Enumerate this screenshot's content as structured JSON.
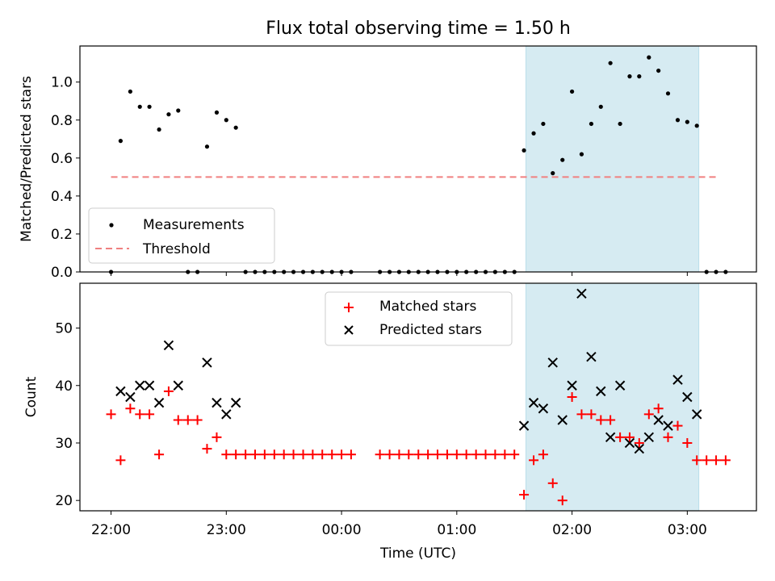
{
  "figure": {
    "title": "Flux total observing time = 1.50 h",
    "xlabel": "Time (UTC)",
    "x_tick_labels": [
      "22:00",
      "23:00",
      "00:00",
      "01:00",
      "02:00",
      "03:00"
    ],
    "x_tick_hours": [
      0,
      1,
      2,
      3,
      4,
      5
    ],
    "x_origin": "22:00 UTC",
    "x_range_hours": [
      -0.27,
      5.6
    ],
    "shaded_span_hours": [
      3.6,
      5.1
    ],
    "shaded_color": "#add8e6"
  },
  "chart_data": [
    {
      "type": "scatter",
      "ylabel": "Matched/Predicted stars",
      "ylim": [
        0,
        1.19
      ],
      "yticks": [
        0.0,
        0.2,
        0.4,
        0.6,
        0.8,
        1.0
      ],
      "ytick_labels": [
        "0.0",
        "0.2",
        "0.4",
        "0.6",
        "0.8",
        "1.0"
      ],
      "legend_position": "lower-left",
      "threshold": {
        "name": "Threshold",
        "value": 0.5,
        "x_range_hours": [
          0,
          5.25
        ],
        "color": "#f08080"
      },
      "series": [
        {
          "name": "Measurements",
          "color": "#000000",
          "marker": "dot",
          "points": [
            [
              0.0,
              0.0
            ],
            [
              0.083,
              0.69
            ],
            [
              0.167,
              0.95
            ],
            [
              0.25,
              0.87
            ],
            [
              0.333,
              0.87
            ],
            [
              0.417,
              0.75
            ],
            [
              0.5,
              0.83
            ],
            [
              0.583,
              0.85
            ],
            [
              0.667,
              0.0
            ],
            [
              0.75,
              0.0
            ],
            [
              0.833,
              0.66
            ],
            [
              0.917,
              0.84
            ],
            [
              1.0,
              0.8
            ],
            [
              1.083,
              0.76
            ],
            [
              1.167,
              0.0
            ],
            [
              1.25,
              0.0
            ],
            [
              1.333,
              0.0
            ],
            [
              1.417,
              0.0
            ],
            [
              1.5,
              0.0
            ],
            [
              1.583,
              0.0
            ],
            [
              1.667,
              0.0
            ],
            [
              1.75,
              0.0
            ],
            [
              1.833,
              0.0
            ],
            [
              1.917,
              0.0
            ],
            [
              2.0,
              0.0
            ],
            [
              2.083,
              0.0
            ],
            [
              2.333,
              0.0
            ],
            [
              2.417,
              0.0
            ],
            [
              2.5,
              0.0
            ],
            [
              2.583,
              0.0
            ],
            [
              2.667,
              0.0
            ],
            [
              2.75,
              0.0
            ],
            [
              2.833,
              0.0
            ],
            [
              2.917,
              0.0
            ],
            [
              3.0,
              0.0
            ],
            [
              3.083,
              0.0
            ],
            [
              3.167,
              0.0
            ],
            [
              3.25,
              0.0
            ],
            [
              3.333,
              0.0
            ],
            [
              3.417,
              0.0
            ],
            [
              3.5,
              0.0
            ],
            [
              3.583,
              0.64
            ],
            [
              3.667,
              0.73
            ],
            [
              3.75,
              0.78
            ],
            [
              3.833,
              0.52
            ],
            [
              3.917,
              0.59
            ],
            [
              4.0,
              0.95
            ],
            [
              4.083,
              0.62
            ],
            [
              4.167,
              0.78
            ],
            [
              4.25,
              0.87
            ],
            [
              4.333,
              1.1
            ],
            [
              4.417,
              0.78
            ],
            [
              4.5,
              1.03
            ],
            [
              4.583,
              1.03
            ],
            [
              4.667,
              1.13
            ],
            [
              4.75,
              1.06
            ],
            [
              4.833,
              0.94
            ],
            [
              4.917,
              0.8
            ],
            [
              5.0,
              0.79
            ],
            [
              5.083,
              0.77
            ],
            [
              5.167,
              0.0
            ],
            [
              5.25,
              0.0
            ],
            [
              5.333,
              0.0
            ]
          ]
        }
      ]
    },
    {
      "type": "scatter",
      "ylabel": "Count",
      "ylim": [
        18.2,
        57.8
      ],
      "yticks": [
        20,
        30,
        40,
        50
      ],
      "ytick_labels": [
        "20",
        "30",
        "40",
        "50"
      ],
      "legend_position": "upper-center",
      "series": [
        {
          "name": "Matched stars",
          "color": "#ff0000",
          "marker": "plus",
          "points": [
            [
              0.0,
              35
            ],
            [
              0.083,
              27
            ],
            [
              0.167,
              36
            ],
            [
              0.25,
              35
            ],
            [
              0.333,
              35
            ],
            [
              0.417,
              28
            ],
            [
              0.5,
              39
            ],
            [
              0.583,
              34
            ],
            [
              0.667,
              34
            ],
            [
              0.75,
              34
            ],
            [
              0.833,
              29
            ],
            [
              0.917,
              31
            ],
            [
              1.0,
              28
            ],
            [
              1.083,
              28
            ],
            [
              1.167,
              28
            ],
            [
              1.25,
              28
            ],
            [
              1.333,
              28
            ],
            [
              1.417,
              28
            ],
            [
              1.5,
              28
            ],
            [
              1.583,
              28
            ],
            [
              1.667,
              28
            ],
            [
              1.75,
              28
            ],
            [
              1.833,
              28
            ],
            [
              1.917,
              28
            ],
            [
              2.0,
              28
            ],
            [
              2.083,
              28
            ],
            [
              2.333,
              28
            ],
            [
              2.417,
              28
            ],
            [
              2.5,
              28
            ],
            [
              2.583,
              28
            ],
            [
              2.667,
              28
            ],
            [
              2.75,
              28
            ],
            [
              2.833,
              28
            ],
            [
              2.917,
              28
            ],
            [
              3.0,
              28
            ],
            [
              3.083,
              28
            ],
            [
              3.167,
              28
            ],
            [
              3.25,
              28
            ],
            [
              3.333,
              28
            ],
            [
              3.417,
              28
            ],
            [
              3.5,
              28
            ],
            [
              3.583,
              21
            ],
            [
              3.667,
              27
            ],
            [
              3.75,
              28
            ],
            [
              3.833,
              23
            ],
            [
              3.917,
              20
            ],
            [
              4.0,
              38
            ],
            [
              4.083,
              35
            ],
            [
              4.167,
              35
            ],
            [
              4.25,
              34
            ],
            [
              4.333,
              34
            ],
            [
              4.417,
              31
            ],
            [
              4.5,
              31
            ],
            [
              4.583,
              30
            ],
            [
              4.667,
              35
            ],
            [
              4.75,
              36
            ],
            [
              4.833,
              31
            ],
            [
              4.917,
              33
            ],
            [
              5.0,
              30
            ],
            [
              5.083,
              27
            ],
            [
              5.167,
              27
            ],
            [
              5.25,
              27
            ],
            [
              5.333,
              27
            ]
          ]
        },
        {
          "name": "Predicted stars",
          "color": "#000000",
          "marker": "x",
          "points": [
            [
              0.083,
              39
            ],
            [
              0.167,
              38
            ],
            [
              0.25,
              40
            ],
            [
              0.333,
              40
            ],
            [
              0.417,
              37
            ],
            [
              0.5,
              47
            ],
            [
              0.583,
              40
            ],
            [
              0.833,
              44
            ],
            [
              0.917,
              37
            ],
            [
              1.0,
              35
            ],
            [
              1.083,
              37
            ],
            [
              3.583,
              33
            ],
            [
              3.667,
              37
            ],
            [
              3.75,
              36
            ],
            [
              3.833,
              44
            ],
            [
              3.917,
              34
            ],
            [
              4.0,
              40
            ],
            [
              4.083,
              56
            ],
            [
              4.167,
              45
            ],
            [
              4.25,
              39
            ],
            [
              4.333,
              31
            ],
            [
              4.417,
              40
            ],
            [
              4.5,
              30
            ],
            [
              4.583,
              29
            ],
            [
              4.667,
              31
            ],
            [
              4.75,
              34
            ],
            [
              4.833,
              33
            ],
            [
              4.917,
              41
            ],
            [
              5.0,
              38
            ],
            [
              5.083,
              35
            ]
          ]
        }
      ]
    }
  ]
}
